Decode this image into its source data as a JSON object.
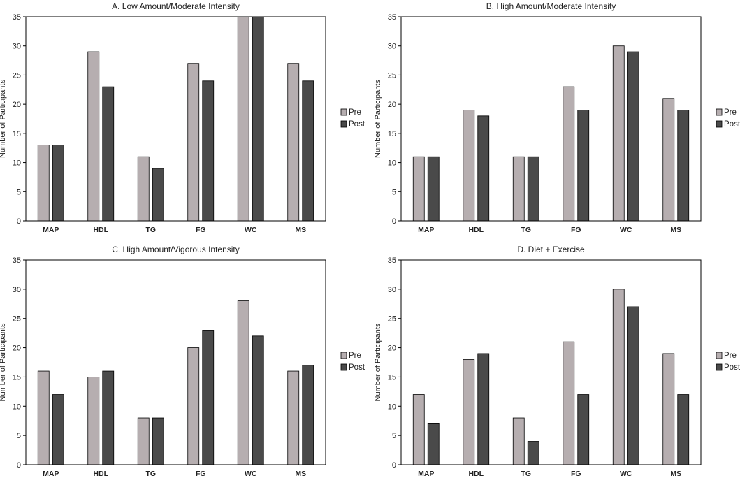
{
  "figure": {
    "series_names": [
      "Pre",
      "Post"
    ],
    "colors": {
      "pre": "#b6aeb0",
      "post": "#4a4a4a",
      "bar_edge": "#000000",
      "axis": "#000000"
    }
  },
  "chart_data": [
    {
      "type": "bar",
      "title": "A. Low Amount/Moderate Intensity",
      "ylabel": "Number of Participants",
      "xlabel": "",
      "ylim": [
        0,
        35
      ],
      "yticks": [
        0,
        5,
        10,
        15,
        20,
        25,
        30,
        35
      ],
      "categories": [
        "MAP",
        "HDL",
        "TG",
        "FG",
        "WC",
        "MS"
      ],
      "series": [
        {
          "name": "Pre",
          "values": [
            13,
            29,
            11,
            27,
            35,
            27
          ]
        },
        {
          "name": "Post",
          "values": [
            13,
            23,
            9,
            24,
            35,
            24
          ]
        }
      ],
      "legend": "right"
    },
    {
      "type": "bar",
      "title": "B. High Amount/Moderate Intensity",
      "ylabel": "Number of Participants",
      "xlabel": "",
      "ylim": [
        0,
        35
      ],
      "yticks": [
        0,
        5,
        10,
        15,
        20,
        25,
        30,
        35
      ],
      "categories": [
        "MAP",
        "HDL",
        "TG",
        "FG",
        "WC",
        "MS"
      ],
      "series": [
        {
          "name": "Pre",
          "values": [
            11,
            19,
            11,
            23,
            30,
            21
          ]
        },
        {
          "name": "Post",
          "values": [
            11,
            18,
            11,
            19,
            29,
            19
          ]
        }
      ],
      "legend": "right"
    },
    {
      "type": "bar",
      "title": "C. High Amount/Vigorous Intensity",
      "ylabel": "Number of Participants",
      "xlabel": "",
      "ylim": [
        0,
        35
      ],
      "yticks": [
        0,
        5,
        10,
        15,
        20,
        25,
        30,
        35
      ],
      "categories": [
        "MAP",
        "HDL",
        "TG",
        "FG",
        "WC",
        "MS"
      ],
      "series": [
        {
          "name": "Pre",
          "values": [
            16,
            15,
            8,
            20,
            28,
            16
          ]
        },
        {
          "name": "Post",
          "values": [
            12,
            16,
            8,
            23,
            22,
            17
          ]
        }
      ],
      "legend": "right"
    },
    {
      "type": "bar",
      "title": "D. Diet + Exercise",
      "ylabel": "Number of Participants",
      "xlabel": "",
      "ylim": [
        0,
        35
      ],
      "yticks": [
        0,
        5,
        10,
        15,
        20,
        25,
        30,
        35
      ],
      "categories": [
        "MAP",
        "HDL",
        "TG",
        "FG",
        "WC",
        "MS"
      ],
      "series": [
        {
          "name": "Pre",
          "values": [
            12,
            18,
            8,
            21,
            30,
            19
          ]
        },
        {
          "name": "Post",
          "values": [
            7,
            19,
            4,
            12,
            27,
            12
          ]
        }
      ],
      "legend": "right"
    }
  ]
}
